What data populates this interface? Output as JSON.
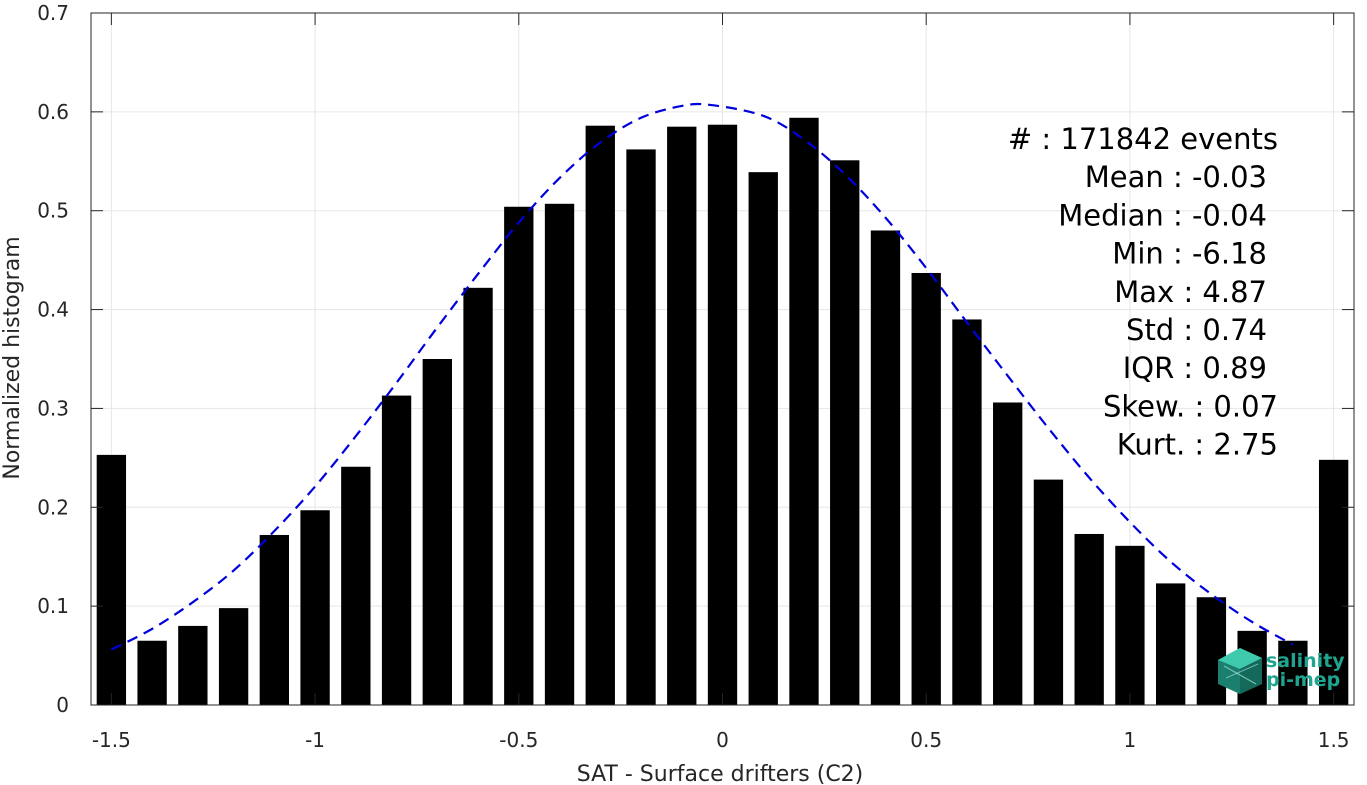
{
  "chart_data": {
    "type": "bar",
    "xlabel": "SAT - Surface drifters (C2)",
    "ylabel": "Normalized histogram",
    "xlim": [
      -1.55,
      1.55
    ],
    "ylim": [
      0,
      0.7
    ],
    "grid": true,
    "x_ticks": [
      -1.5,
      -1,
      -0.5,
      0,
      0.5,
      1,
      1.5
    ],
    "x_tick_labels": [
      "-1.5",
      "-1",
      "-0.5",
      "0",
      "0.5",
      "1",
      "1.5"
    ],
    "y_ticks": [
      0,
      0.1,
      0.2,
      0.3,
      0.4,
      0.5,
      0.6,
      0.7
    ],
    "y_tick_labels": [
      "0",
      "0.1",
      "0.2",
      "0.3",
      "0.4",
      "0.5",
      "0.6",
      "0.7"
    ],
    "bar_color": "#000000",
    "bins": [
      -1.5,
      -1.4,
      -1.3,
      -1.2,
      -1.1,
      -1.0,
      -0.9,
      -0.8,
      -0.7,
      -0.6,
      -0.5,
      -0.4,
      -0.3,
      -0.2,
      -0.1,
      0.0,
      0.1,
      0.2,
      0.3,
      0.4,
      0.5,
      0.6,
      0.7,
      0.8,
      0.9,
      1.0,
      1.1,
      1.2,
      1.3,
      1.4,
      1.5
    ],
    "values": [
      0.253,
      0.065,
      0.08,
      0.098,
      0.172,
      0.197,
      0.241,
      0.313,
      0.35,
      0.422,
      0.504,
      0.507,
      0.586,
      0.562,
      0.585,
      0.587,
      0.539,
      0.594,
      0.551,
      0.48,
      0.437,
      0.39,
      0.306,
      0.228,
      0.173,
      0.161,
      0.123,
      0.109,
      0.075,
      0.065,
      0.248
    ],
    "fit_curve": {
      "style": "dashed",
      "color": "#0000dd",
      "x": [
        -1.5,
        -1.4,
        -1.3,
        -1.2,
        -1.1,
        -1.0,
        -0.9,
        -0.8,
        -0.7,
        -0.6,
        -0.5,
        -0.4,
        -0.3,
        -0.2,
        -0.1,
        -0.03,
        0.1,
        0.2,
        0.3,
        0.4,
        0.5,
        0.6,
        0.7,
        0.8,
        0.9,
        1.0,
        1.1,
        1.2,
        1.3,
        1.4
      ],
      "y": [
        0.056,
        0.077,
        0.104,
        0.136,
        0.176,
        0.221,
        0.272,
        0.326,
        0.382,
        0.436,
        0.488,
        0.533,
        0.569,
        0.594,
        0.606,
        0.607,
        0.596,
        0.572,
        0.537,
        0.493,
        0.442,
        0.387,
        0.333,
        0.28,
        0.23,
        0.185,
        0.145,
        0.112,
        0.084,
        0.061
      ]
    },
    "annotations": [
      "#  : 171842 events",
      "Mean : -0.03",
      "Median : -0.04",
      "Min : -6.18",
      "Max : 4.87",
      "Std : 0.74",
      "IQR : 0.89",
      "Skew. : 0.07",
      "Kurt. : 2.75"
    ]
  },
  "logo": {
    "line1": "salinity",
    "line2": "pi-mep",
    "color": "#1fa58f"
  }
}
